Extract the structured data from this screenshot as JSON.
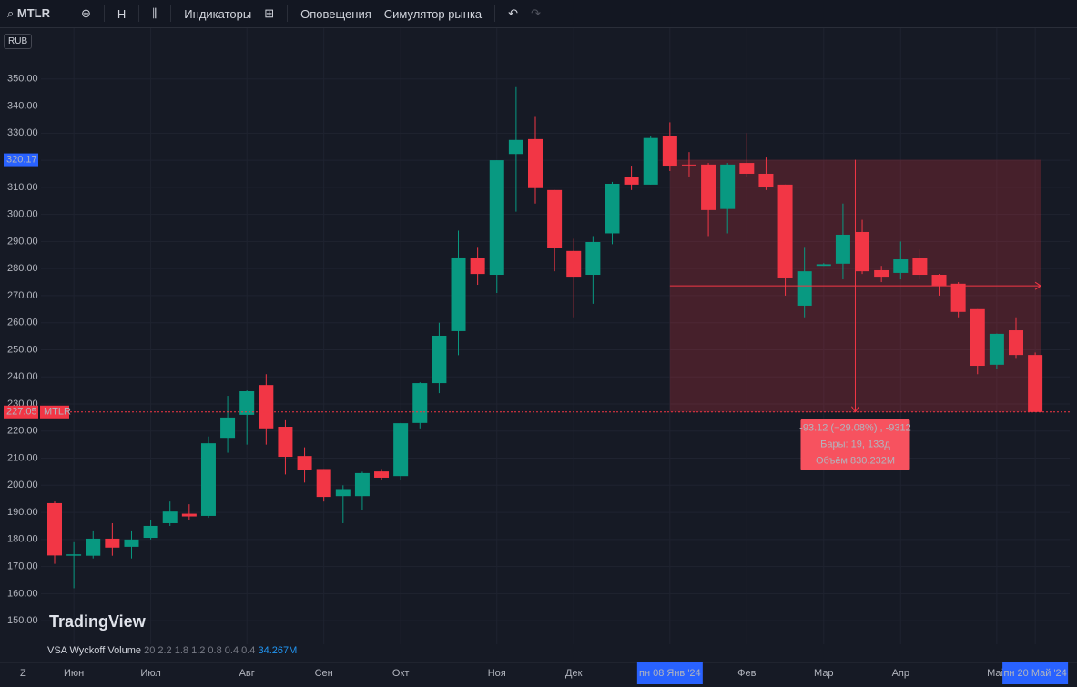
{
  "toolbar": {
    "symbol": "MTLR",
    "interval": "H",
    "indicators": "Индикаторы",
    "alerts": "Оповещения",
    "replay": "Симулятор рынка"
  },
  "currency": "RUB",
  "logo": "TradingView",
  "chart_data": {
    "type": "candlestick",
    "categories": [
      null,
      "Июн",
      null,
      null,
      null,
      "Июл",
      null,
      null,
      null,
      null,
      "Авг",
      null,
      null,
      null,
      "Сен",
      null,
      null,
      null,
      "Окт",
      null,
      null,
      null,
      null,
      "Ноя",
      null,
      null,
      null,
      "Дек",
      null,
      null,
      null,
      null,
      "пн 08 Янв '24",
      null,
      null,
      null,
      "Фев",
      null,
      null,
      null,
      "Мар",
      null,
      null,
      null,
      "Апр",
      null,
      null,
      null,
      null,
      "Май",
      null,
      "пн 20 Май '24"
    ],
    "open": [
      193.4,
      174,
      174,
      180.3,
      177.3,
      180.6,
      186,
      189.5,
      188.7,
      217.5,
      226,
      237,
      221.6,
      210.8,
      206,
      196,
      196,
      205.1,
      203.4,
      223,
      237.7,
      256.9,
      284,
      277.7,
      322.3,
      327.8,
      309,
      286.5,
      277.7,
      293,
      313.7,
      311,
      328.8,
      318.4,
      318.4,
      302,
      319,
      315,
      311,
      266.3,
      281,
      281.8,
      293.5,
      279.4,
      278.4,
      283.8,
      277.7,
      274.4,
      265,
      244.5,
      257.2,
      248.1
    ],
    "high": [
      194,
      179,
      183,
      186,
      183,
      187,
      194,
      193,
      218,
      233,
      235,
      241,
      224,
      214,
      206,
      200,
      205,
      206,
      223,
      238,
      260,
      294,
      288,
      320,
      347,
      336,
      309,
      291,
      292,
      312,
      318,
      329,
      334,
      323,
      319,
      319,
      330,
      321,
      311,
      288,
      282,
      304,
      298,
      281,
      290,
      287,
      278,
      275,
      265,
      256,
      262,
      249
    ],
    "low": [
      171,
      162,
      173,
      174,
      173,
      180,
      185,
      187,
      188,
      212,
      215,
      215,
      204,
      201,
      194,
      186,
      191,
      202,
      202,
      221,
      234,
      248,
      274,
      271,
      301,
      304,
      279,
      262,
      267,
      289,
      309,
      311,
      316,
      314,
      292,
      293,
      314,
      309,
      270,
      262,
      281,
      276,
      278,
      275,
      276,
      276,
      270,
      262,
      241,
      243,
      247,
      227
    ],
    "close": [
      174.1,
      174.5,
      180.3,
      177,
      180,
      185,
      190.3,
      188.5,
      215.5,
      225,
      234.7,
      221,
      210.5,
      205.8,
      195.7,
      198.6,
      204.5,
      202.8,
      222.9,
      237.7,
      255.2,
      284.1,
      278,
      320,
      327.5,
      309.7,
      287.5,
      277,
      289.8,
      311.3,
      311,
      328.2,
      318,
      318.2,
      301.6,
      318.4,
      315,
      310,
      276.7,
      279,
      281.6,
      292.5,
      279,
      277,
      283.4,
      277.7,
      273.7,
      264,
      244.1,
      255.9,
      248.1,
      227.05
    ],
    "up_color": "#089981",
    "down_color": "#f23645",
    "ylim": [
      144,
      359
    ],
    "yticks": [
      {
        "value": 150,
        "label": "150.00"
      },
      {
        "value": 160,
        "label": "160.00"
      },
      {
        "value": 170,
        "label": "170.00"
      },
      {
        "value": 180,
        "label": "180.00"
      },
      {
        "value": 190,
        "label": "190.00"
      },
      {
        "value": 200,
        "label": "200.00"
      },
      {
        "value": 210,
        "label": "210.00"
      },
      {
        "value": 220,
        "label": "220.00"
      },
      {
        "value": 230,
        "label": "230.00"
      },
      {
        "value": 240,
        "label": "240.00"
      },
      {
        "value": 250,
        "label": "250.00"
      },
      {
        "value": 260,
        "label": "260.00"
      },
      {
        "value": 270,
        "label": "270.00"
      },
      {
        "value": 280,
        "label": "280.00"
      },
      {
        "value": 290,
        "label": "290.00"
      },
      {
        "value": 300,
        "label": "300.00"
      },
      {
        "value": 310,
        "label": "310.00"
      },
      {
        "value": 320,
        "label": "320.00"
      },
      {
        "value": 330,
        "label": "330.00"
      },
      {
        "value": 340,
        "label": "340.00"
      },
      {
        "value": 350,
        "label": "350.00"
      }
    ],
    "grid": true,
    "measure_start_price": 320.17,
    "last_price": 227.05,
    "last_price_tag": "MTLR",
    "measure_lines": [
      "-93.12 (−29.08%) , -9312",
      "Бары: 19, 133д",
      "Объём 830.232M"
    ]
  },
  "volume_legend": {
    "name": "VSA Wyckoff Volume",
    "params": "20 2.2 1.8 1.2 0.8 0.4 0.4",
    "value": "34.267M"
  },
  "bottom_left": "Z"
}
